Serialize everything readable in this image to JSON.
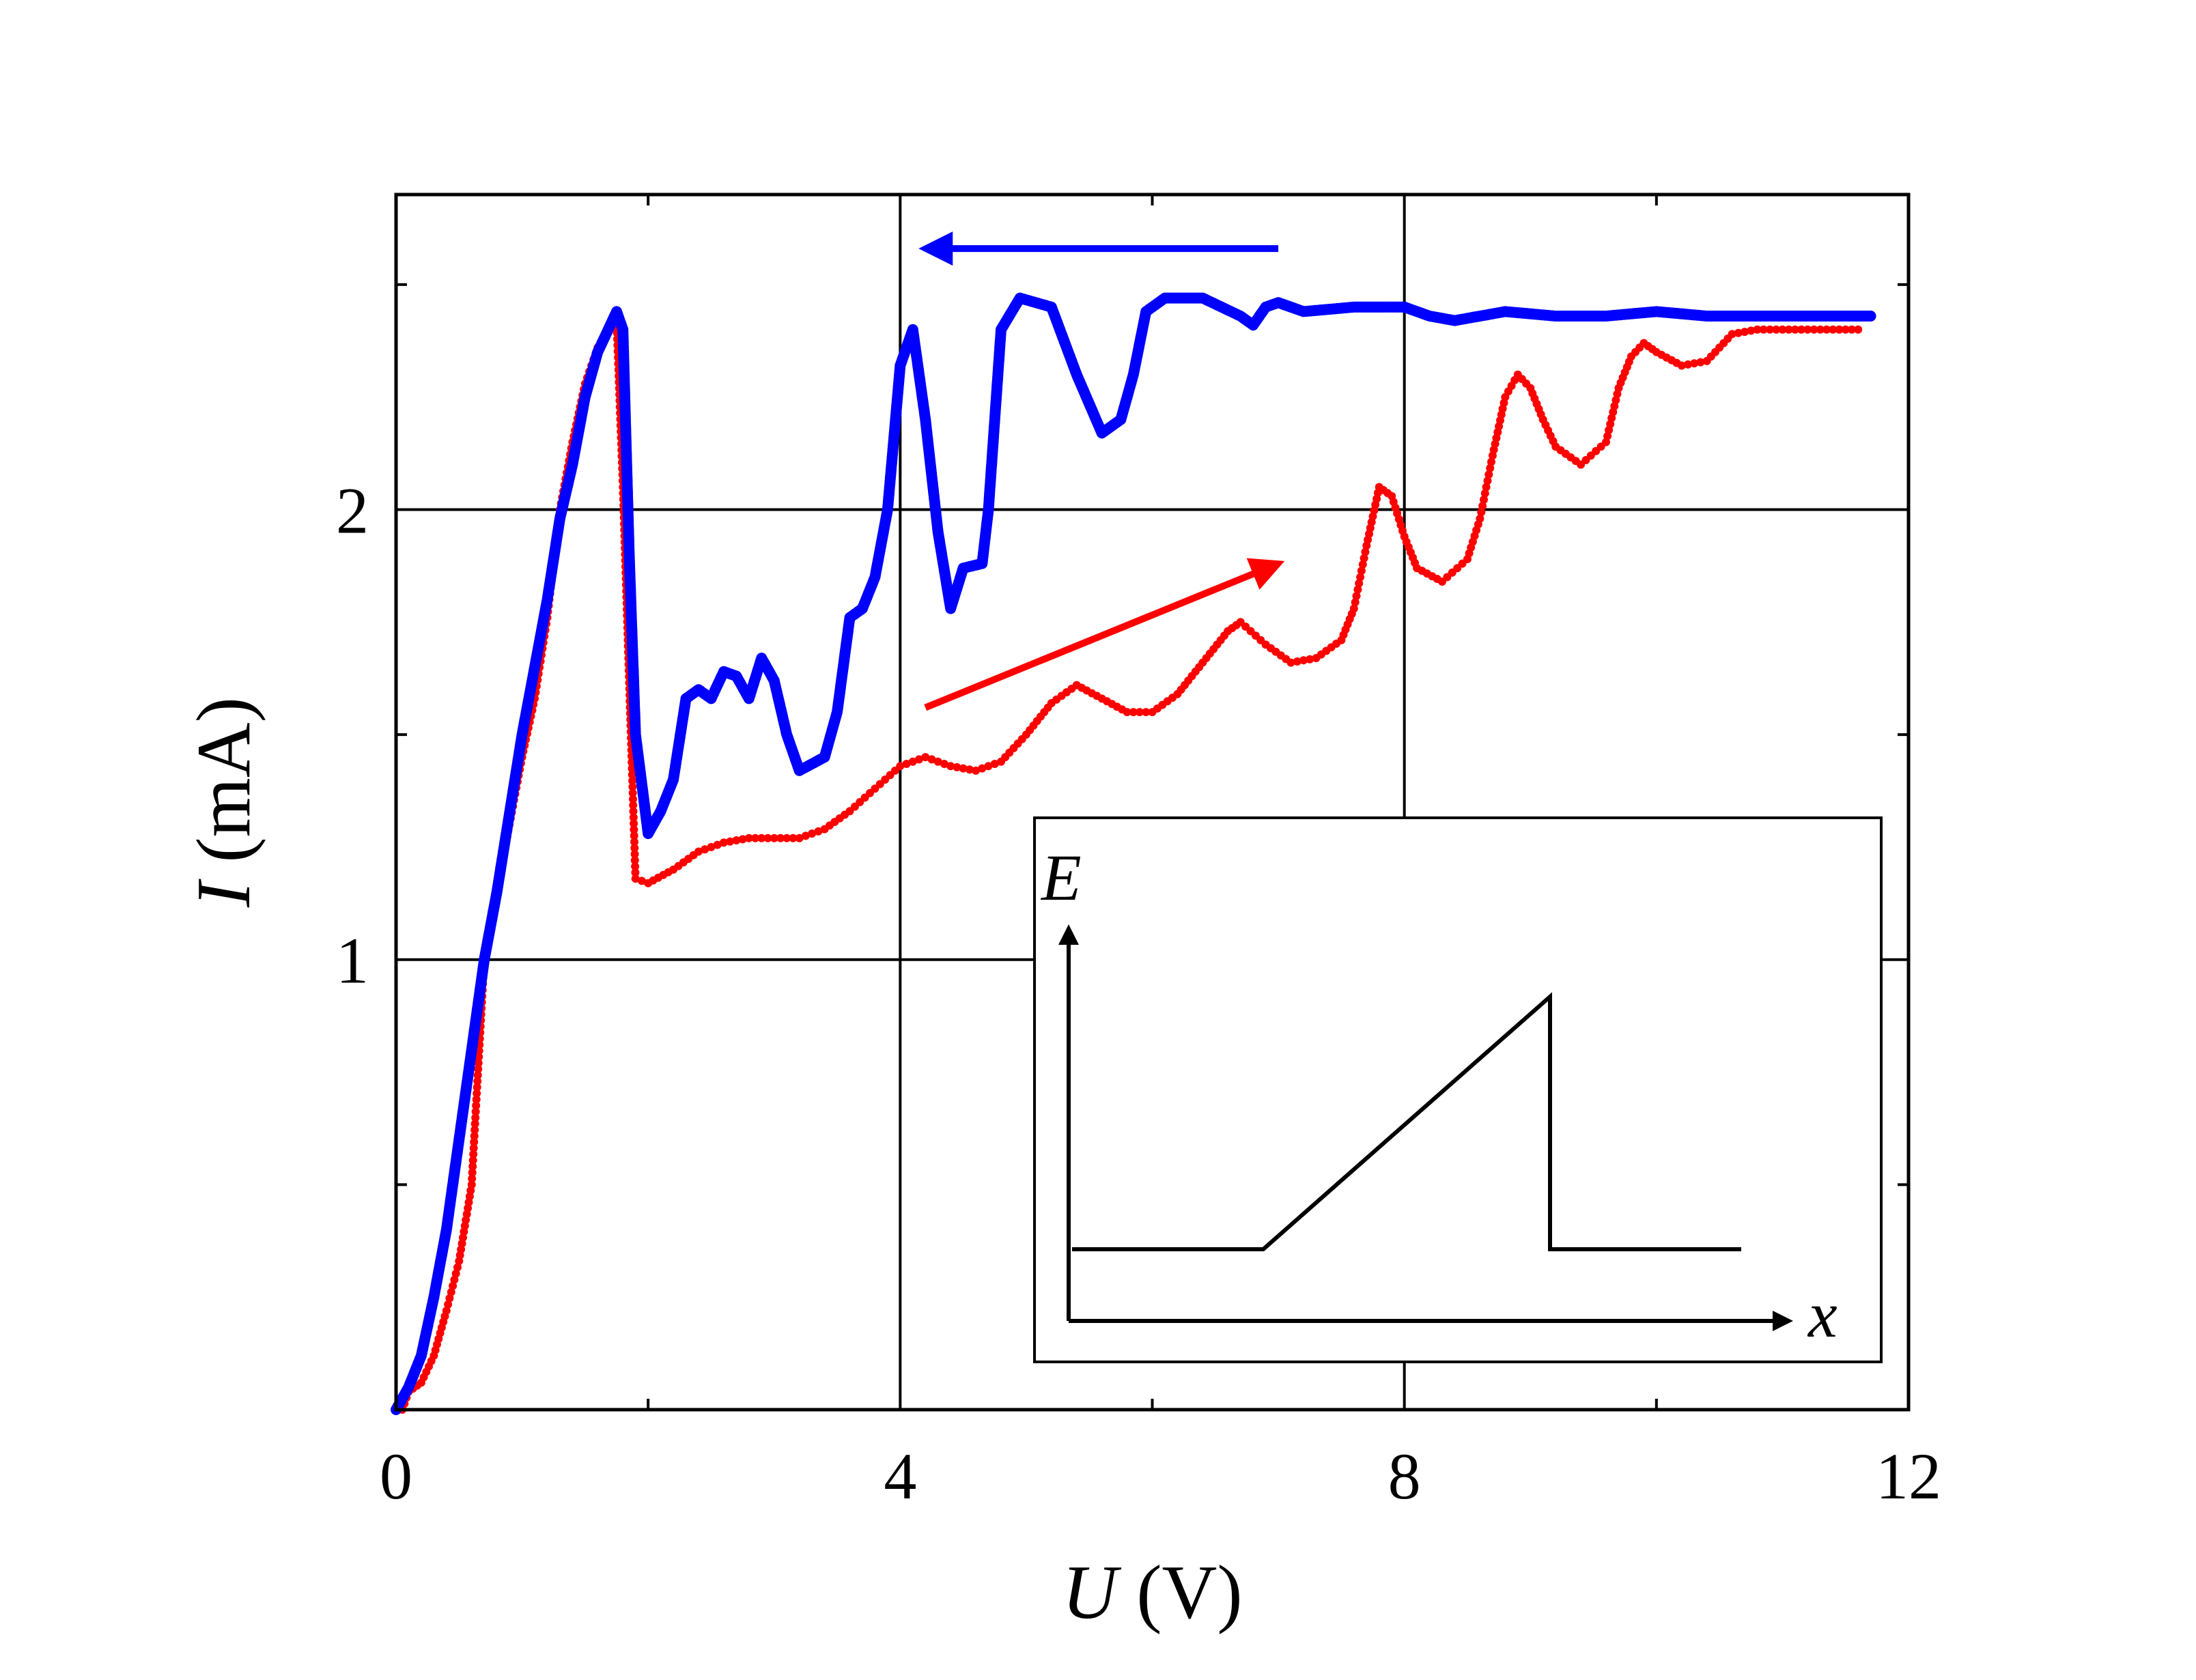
{
  "chart_data": {
    "type": "scatter",
    "title": "",
    "xlabel": {
      "symbol": "U",
      "unit": " (V)"
    },
    "ylabel": {
      "symbol": "I",
      "unit": " (mA)"
    },
    "xlim": [
      0,
      12
    ],
    "ylim": [
      0,
      2.7
    ],
    "x_ticks": [
      0,
      4,
      8,
      12
    ],
    "x_tick_labels": [
      "0",
      "4",
      "8",
      "12"
    ],
    "x_minor_ticks": [
      2,
      6,
      10
    ],
    "y_ticks": [
      1,
      2
    ],
    "y_tick_labels": [
      "1",
      "2"
    ],
    "y_minor_ticks": [
      0.5,
      1.5,
      2.5
    ],
    "grid": true,
    "series": [
      {
        "color": "#ff0000",
        "direction": "increasing U",
        "points": [
          [
            0.05,
            0.0
          ],
          [
            0.1,
            0.04
          ],
          [
            0.2,
            0.06
          ],
          [
            0.3,
            0.12
          ],
          [
            0.4,
            0.22
          ],
          [
            0.5,
            0.33
          ],
          [
            0.6,
            0.5
          ],
          [
            0.7,
            1.0
          ],
          [
            0.8,
            1.15
          ],
          [
            0.9,
            1.3
          ],
          [
            1.0,
            1.45
          ],
          [
            1.1,
            1.58
          ],
          [
            1.2,
            1.76
          ],
          [
            1.3,
            2.0
          ],
          [
            1.4,
            2.15
          ],
          [
            1.5,
            2.28
          ],
          [
            1.6,
            2.36
          ],
          [
            1.7,
            2.41
          ],
          [
            1.75,
            2.42
          ],
          [
            1.8,
            2.05
          ],
          [
            1.9,
            1.18
          ],
          [
            2.0,
            1.17
          ],
          [
            2.2,
            1.2
          ],
          [
            2.4,
            1.24
          ],
          [
            2.6,
            1.26
          ],
          [
            2.8,
            1.27
          ],
          [
            3.0,
            1.27
          ],
          [
            3.2,
            1.27
          ],
          [
            3.4,
            1.29
          ],
          [
            3.6,
            1.33
          ],
          [
            3.8,
            1.38
          ],
          [
            4.0,
            1.43
          ],
          [
            4.2,
            1.45
          ],
          [
            4.4,
            1.43
          ],
          [
            4.6,
            1.42
          ],
          [
            4.8,
            1.44
          ],
          [
            5.0,
            1.5
          ],
          [
            5.2,
            1.57
          ],
          [
            5.4,
            1.61
          ],
          [
            5.6,
            1.58
          ],
          [
            5.8,
            1.55
          ],
          [
            6.0,
            1.55
          ],
          [
            6.2,
            1.59
          ],
          [
            6.4,
            1.66
          ],
          [
            6.6,
            1.73
          ],
          [
            6.7,
            1.75
          ],
          [
            6.9,
            1.7
          ],
          [
            7.1,
            1.66
          ],
          [
            7.3,
            1.67
          ],
          [
            7.5,
            1.71
          ],
          [
            7.6,
            1.78
          ],
          [
            7.7,
            1.92
          ],
          [
            7.8,
            2.05
          ],
          [
            7.9,
            2.03
          ],
          [
            8.0,
            1.94
          ],
          [
            8.1,
            1.87
          ],
          [
            8.3,
            1.84
          ],
          [
            8.5,
            1.89
          ],
          [
            8.6,
            1.98
          ],
          [
            8.7,
            2.12
          ],
          [
            8.8,
            2.25
          ],
          [
            8.9,
            2.3
          ],
          [
            9.0,
            2.27
          ],
          [
            9.1,
            2.2
          ],
          [
            9.2,
            2.14
          ],
          [
            9.4,
            2.1
          ],
          [
            9.6,
            2.15
          ],
          [
            9.7,
            2.27
          ],
          [
            9.8,
            2.34
          ],
          [
            9.9,
            2.37
          ],
          [
            10.0,
            2.35
          ],
          [
            10.2,
            2.32
          ],
          [
            10.4,
            2.33
          ],
          [
            10.6,
            2.39
          ],
          [
            10.8,
            2.4
          ],
          [
            11.0,
            2.4
          ],
          [
            11.3,
            2.4
          ],
          [
            11.6,
            2.4
          ]
        ]
      },
      {
        "color": "#0000ff",
        "direction": "decreasing U",
        "points": [
          [
            11.7,
            2.43
          ],
          [
            11.2,
            2.43
          ],
          [
            10.8,
            2.43
          ],
          [
            10.4,
            2.43
          ],
          [
            10.0,
            2.44
          ],
          [
            9.6,
            2.43
          ],
          [
            9.2,
            2.43
          ],
          [
            8.8,
            2.44
          ],
          [
            8.4,
            2.42
          ],
          [
            8.2,
            2.43
          ],
          [
            8.0,
            2.45
          ],
          [
            7.6,
            2.45
          ],
          [
            7.2,
            2.44
          ],
          [
            7.0,
            2.46
          ],
          [
            6.9,
            2.45
          ],
          [
            6.8,
            2.41
          ],
          [
            6.7,
            2.43
          ],
          [
            6.4,
            2.47
          ],
          [
            6.1,
            2.47
          ],
          [
            5.95,
            2.44
          ],
          [
            5.85,
            2.3
          ],
          [
            5.75,
            2.2
          ],
          [
            5.6,
            2.17
          ],
          [
            5.4,
            2.3
          ],
          [
            5.2,
            2.45
          ],
          [
            4.95,
            2.47
          ],
          [
            4.8,
            2.4
          ],
          [
            4.7,
            2.0
          ],
          [
            4.65,
            1.88
          ],
          [
            4.5,
            1.87
          ],
          [
            4.4,
            1.78
          ],
          [
            4.3,
            1.95
          ],
          [
            4.2,
            2.2
          ],
          [
            4.1,
            2.4
          ],
          [
            4.0,
            2.32
          ],
          [
            3.9,
            2.0
          ],
          [
            3.8,
            1.85
          ],
          [
            3.7,
            1.78
          ],
          [
            3.6,
            1.76
          ],
          [
            3.5,
            1.55
          ],
          [
            3.4,
            1.45
          ],
          [
            3.2,
            1.42
          ],
          [
            3.1,
            1.5
          ],
          [
            3.0,
            1.62
          ],
          [
            2.9,
            1.67
          ],
          [
            2.8,
            1.58
          ],
          [
            2.7,
            1.63
          ],
          [
            2.6,
            1.64
          ],
          [
            2.5,
            1.58
          ],
          [
            2.4,
            1.6
          ],
          [
            2.3,
            1.58
          ],
          [
            2.2,
            1.4
          ],
          [
            2.1,
            1.33
          ],
          [
            2.0,
            1.28
          ],
          [
            1.9,
            1.5
          ],
          [
            1.85,
            1.9
          ],
          [
            1.8,
            2.4
          ],
          [
            1.75,
            2.44
          ],
          [
            1.6,
            2.35
          ],
          [
            1.5,
            2.25
          ],
          [
            1.4,
            2.1
          ],
          [
            1.3,
            1.98
          ],
          [
            1.2,
            1.8
          ],
          [
            1.0,
            1.5
          ],
          [
            0.8,
            1.15
          ],
          [
            0.7,
            1.0
          ],
          [
            0.6,
            0.8
          ],
          [
            0.5,
            0.6
          ],
          [
            0.4,
            0.4
          ],
          [
            0.3,
            0.25
          ],
          [
            0.2,
            0.12
          ],
          [
            0.1,
            0.05
          ],
          [
            0.0,
            0.0
          ]
        ]
      }
    ],
    "annotations": [
      {
        "kind": "arrow",
        "color": "#0000ff",
        "from": [
          7.0,
          2.58
        ],
        "to": [
          4.2,
          2.58
        ]
      },
      {
        "kind": "arrow",
        "color": "#ff0000",
        "from": [
          4.2,
          1.56
        ],
        "to": [
          7.0,
          1.88
        ]
      }
    ],
    "inset": {
      "type": "line",
      "xlabel": "x",
      "ylabel": "E",
      "profile": [
        [
          0.0,
          0.0
        ],
        [
          0.3,
          0.0
        ],
        [
          0.75,
          0.78
        ],
        [
          0.75,
          0.0
        ],
        [
          1.05,
          0.0
        ]
      ]
    }
  }
}
